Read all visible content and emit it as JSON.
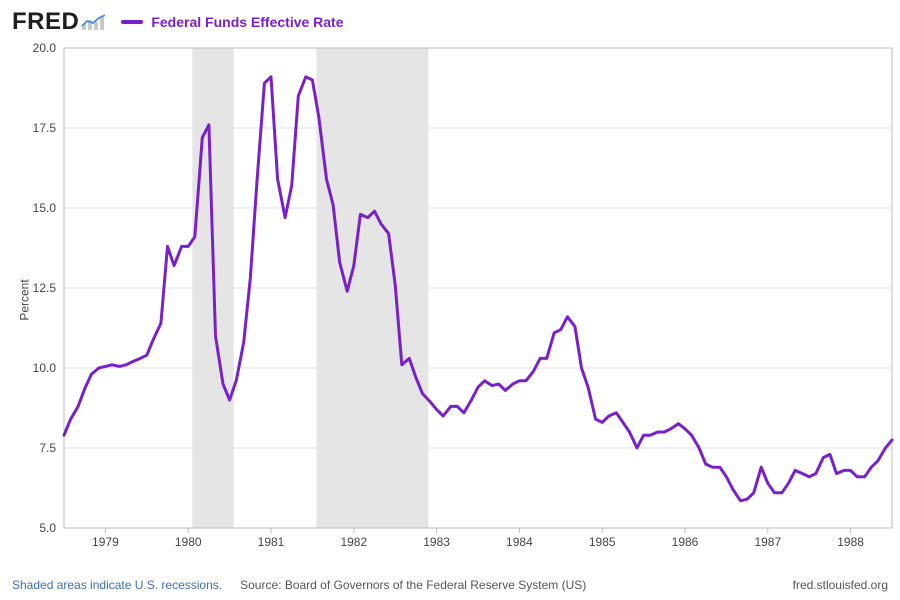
{
  "brand": {
    "name": "FRED"
  },
  "legend": {
    "series_label": "Federal Funds Effective Rate",
    "series_color": "#7a20c9"
  },
  "chart": {
    "type": "line",
    "line_color": "#7a20c9",
    "line_width": 3,
    "background_color": "#ffffff",
    "grid_color": "#e2e2e2",
    "border_color": "#bdbdbd",
    "recession_color": "#e5e5e5",
    "y_axis_title": "Percent",
    "ylim": [
      5.0,
      20.0
    ],
    "yticks": [
      5.0,
      7.5,
      10.0,
      12.5,
      15.0,
      17.5,
      20.0
    ],
    "ytick_labels": [
      "5.0",
      "7.5",
      "10.0",
      "12.5",
      "15.0",
      "17.5",
      "20.0"
    ],
    "xlim": [
      1978.5,
      1988.5
    ],
    "xticks": [
      1979,
      1980,
      1981,
      1982,
      1983,
      1984,
      1985,
      1986,
      1987,
      1988
    ],
    "xtick_labels": [
      "1979",
      "1980",
      "1981",
      "1982",
      "1983",
      "1984",
      "1985",
      "1986",
      "1987",
      "1988"
    ],
    "recession_bands": [
      {
        "start": 1980.05,
        "end": 1980.55
      },
      {
        "start": 1981.55,
        "end": 1982.9
      }
    ],
    "series": {
      "x": [
        1978.5,
        1978.58,
        1978.67,
        1978.75,
        1978.83,
        1978.92,
        1979.0,
        1979.08,
        1979.17,
        1979.25,
        1979.33,
        1979.42,
        1979.5,
        1979.58,
        1979.67,
        1979.75,
        1979.83,
        1979.92,
        1980.0,
        1980.08,
        1980.17,
        1980.25,
        1980.33,
        1980.42,
        1980.5,
        1980.58,
        1980.67,
        1980.75,
        1980.83,
        1980.92,
        1981.0,
        1981.08,
        1981.17,
        1981.25,
        1981.33,
        1981.42,
        1981.5,
        1981.58,
        1981.67,
        1981.75,
        1981.83,
        1981.92,
        1982.0,
        1982.08,
        1982.17,
        1982.25,
        1982.33,
        1982.42,
        1982.5,
        1982.58,
        1982.67,
        1982.75,
        1982.83,
        1982.92,
        1983.0,
        1983.08,
        1983.17,
        1983.25,
        1983.33,
        1983.42,
        1983.5,
        1983.58,
        1983.67,
        1983.75,
        1983.83,
        1983.92,
        1984.0,
        1984.08,
        1984.17,
        1984.25,
        1984.33,
        1984.42,
        1984.5,
        1984.58,
        1984.67,
        1984.75,
        1984.83,
        1984.92,
        1985.0,
        1985.08,
        1985.17,
        1985.25,
        1985.33,
        1985.42,
        1985.5,
        1985.58,
        1985.67,
        1985.75,
        1985.83,
        1985.92,
        1986.0,
        1986.08,
        1986.17,
        1986.25,
        1986.33,
        1986.42,
        1986.5,
        1986.58,
        1986.67,
        1986.75,
        1986.83,
        1986.92,
        1987.0,
        1987.08,
        1987.17,
        1987.25,
        1987.33,
        1987.42,
        1987.5,
        1987.58,
        1987.67,
        1987.75,
        1987.83,
        1987.92,
        1988.0,
        1988.08,
        1988.17,
        1988.25,
        1988.33,
        1988.42,
        1988.5
      ],
      "y": [
        7.9,
        8.4,
        8.8,
        9.35,
        9.8,
        10.0,
        10.05,
        10.1,
        10.05,
        10.1,
        10.2,
        10.3,
        10.4,
        10.9,
        11.4,
        13.8,
        13.2,
        13.8,
        13.8,
        14.1,
        17.2,
        17.6,
        11.0,
        9.5,
        9.0,
        9.6,
        10.8,
        12.8,
        15.8,
        18.9,
        19.1,
        15.9,
        14.7,
        15.7,
        18.5,
        19.1,
        19.0,
        17.8,
        15.9,
        15.1,
        13.3,
        12.4,
        13.2,
        14.8,
        14.7,
        14.9,
        14.5,
        14.2,
        12.6,
        10.1,
        10.3,
        9.7,
        9.2,
        8.95,
        8.7,
        8.5,
        8.8,
        8.8,
        8.6,
        9.0,
        9.4,
        9.6,
        9.45,
        9.5,
        9.3,
        9.5,
        9.6,
        9.6,
        9.9,
        10.3,
        10.3,
        11.1,
        11.2,
        11.6,
        11.3,
        10.0,
        9.4,
        8.4,
        8.3,
        8.5,
        8.6,
        8.3,
        8.0,
        7.5,
        7.9,
        7.9,
        8.0,
        8.0,
        8.1,
        8.26,
        8.1,
        7.9,
        7.5,
        7.0,
        6.9,
        6.9,
        6.6,
        6.2,
        5.85,
        5.9,
        6.1,
        6.9,
        6.4,
        6.1,
        6.1,
        6.4,
        6.8,
        6.7,
        6.6,
        6.7,
        7.2,
        7.3,
        6.7,
        6.8,
        6.8,
        6.6,
        6.6,
        6.9,
        7.1,
        7.5,
        7.75
      ]
    }
  },
  "footer": {
    "disclaimer": "Shaded areas indicate U.S. recessions.",
    "source_label": "Source: Board of Governors of the Federal Reserve System (US)",
    "site": "fred.stlouisfed.org"
  }
}
